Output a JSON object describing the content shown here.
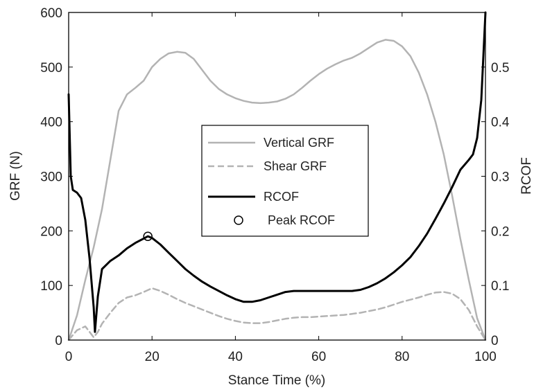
{
  "chart_data": {
    "type": "line",
    "xlabel": "Stance Time (%)",
    "ylabel": "GRF (N)",
    "ylabel_right": "RCOF",
    "xlim": [
      0,
      100
    ],
    "ylim": [
      0,
      600
    ],
    "ylim_right": [
      0,
      0.6
    ],
    "x_ticks": [
      "0",
      "20",
      "40",
      "60",
      "80",
      "100"
    ],
    "y_ticks": [
      "0",
      "100",
      "200",
      "300",
      "400",
      "500",
      "600"
    ],
    "y_ticks_right": [
      "0",
      "0.1",
      "0.2",
      "0.3",
      "0.4",
      "0.5"
    ],
    "grid": false,
    "legend_position": "center",
    "series": [
      {
        "name": "Vertical GRF",
        "axis": "left",
        "style": "solid",
        "color": "#b3b3b3",
        "points": [
          [
            0,
            0
          ],
          [
            2,
            45
          ],
          [
            4,
            110
          ],
          [
            6,
            170
          ],
          [
            8,
            240
          ],
          [
            10,
            330
          ],
          [
            12,
            420
          ],
          [
            14,
            450
          ],
          [
            16,
            462
          ],
          [
            18,
            475
          ],
          [
            20,
            500
          ],
          [
            22,
            515
          ],
          [
            24,
            525
          ],
          [
            26,
            528
          ],
          [
            28,
            526
          ],
          [
            30,
            515
          ],
          [
            32,
            495
          ],
          [
            34,
            475
          ],
          [
            36,
            460
          ],
          [
            38,
            450
          ],
          [
            40,
            443
          ],
          [
            42,
            438
          ],
          [
            44,
            435
          ],
          [
            46,
            434
          ],
          [
            48,
            435
          ],
          [
            50,
            437
          ],
          [
            52,
            442
          ],
          [
            54,
            450
          ],
          [
            56,
            462
          ],
          [
            58,
            475
          ],
          [
            60,
            487
          ],
          [
            62,
            497
          ],
          [
            64,
            505
          ],
          [
            66,
            512
          ],
          [
            68,
            517
          ],
          [
            70,
            525
          ],
          [
            72,
            535
          ],
          [
            74,
            545
          ],
          [
            76,
            550
          ],
          [
            78,
            548
          ],
          [
            80,
            538
          ],
          [
            82,
            520
          ],
          [
            84,
            490
          ],
          [
            86,
            450
          ],
          [
            88,
            400
          ],
          [
            90,
            340
          ],
          [
            92,
            265
          ],
          [
            94,
            185
          ],
          [
            96,
            110
          ],
          [
            98,
            40
          ],
          [
            100,
            0
          ]
        ]
      },
      {
        "name": "Shear GRF",
        "axis": "left",
        "style": "dashed",
        "color": "#b3b3b3",
        "points": [
          [
            0,
            0
          ],
          [
            2,
            18
          ],
          [
            4,
            25
          ],
          [
            5,
            15
          ],
          [
            6,
            5
          ],
          [
            7,
            15
          ],
          [
            8,
            30
          ],
          [
            10,
            50
          ],
          [
            12,
            68
          ],
          [
            14,
            78
          ],
          [
            16,
            82
          ],
          [
            18,
            88
          ],
          [
            20,
            95
          ],
          [
            22,
            90
          ],
          [
            24,
            83
          ],
          [
            26,
            75
          ],
          [
            28,
            68
          ],
          [
            30,
            62
          ],
          [
            32,
            56
          ],
          [
            34,
            50
          ],
          [
            36,
            44
          ],
          [
            38,
            39
          ],
          [
            40,
            35
          ],
          [
            42,
            32
          ],
          [
            44,
            31
          ],
          [
            46,
            31
          ],
          [
            48,
            33
          ],
          [
            50,
            36
          ],
          [
            52,
            39
          ],
          [
            54,
            41
          ],
          [
            56,
            42
          ],
          [
            58,
            42
          ],
          [
            60,
            43
          ],
          [
            62,
            44
          ],
          [
            64,
            45
          ],
          [
            66,
            46
          ],
          [
            68,
            48
          ],
          [
            70,
            50
          ],
          [
            72,
            53
          ],
          [
            74,
            56
          ],
          [
            76,
            60
          ],
          [
            78,
            65
          ],
          [
            80,
            70
          ],
          [
            82,
            74
          ],
          [
            84,
            78
          ],
          [
            86,
            83
          ],
          [
            88,
            87
          ],
          [
            90,
            88
          ],
          [
            92,
            85
          ],
          [
            94,
            75
          ],
          [
            96,
            55
          ],
          [
            98,
            25
          ],
          [
            100,
            0
          ]
        ]
      },
      {
        "name": "RCOF",
        "axis": "right",
        "style": "solid",
        "color": "#000000",
        "points": [
          [
            0,
            0.45
          ],
          [
            0.5,
            0.3
          ],
          [
            1,
            0.275
          ],
          [
            2,
            0.27
          ],
          [
            3,
            0.26
          ],
          [
            4,
            0.22
          ],
          [
            5,
            0.15
          ],
          [
            6,
            0.06
          ],
          [
            6.3,
            0.015
          ],
          [
            7,
            0.08
          ],
          [
            8,
            0.13
          ],
          [
            10,
            0.145
          ],
          [
            12,
            0.155
          ],
          [
            14,
            0.168
          ],
          [
            16,
            0.178
          ],
          [
            18,
            0.186
          ],
          [
            19,
            0.19
          ],
          [
            20,
            0.187
          ],
          [
            22,
            0.175
          ],
          [
            24,
            0.16
          ],
          [
            26,
            0.145
          ],
          [
            28,
            0.13
          ],
          [
            30,
            0.118
          ],
          [
            32,
            0.107
          ],
          [
            34,
            0.098
          ],
          [
            36,
            0.09
          ],
          [
            38,
            0.082
          ],
          [
            40,
            0.075
          ],
          [
            42,
            0.07
          ],
          [
            44,
            0.07
          ],
          [
            46,
            0.073
          ],
          [
            48,
            0.078
          ],
          [
            50,
            0.083
          ],
          [
            52,
            0.088
          ],
          [
            54,
            0.09
          ],
          [
            56,
            0.09
          ],
          [
            58,
            0.09
          ],
          [
            60,
            0.09
          ],
          [
            62,
            0.09
          ],
          [
            64,
            0.09
          ],
          [
            66,
            0.09
          ],
          [
            68,
            0.09
          ],
          [
            70,
            0.092
          ],
          [
            72,
            0.097
          ],
          [
            74,
            0.104
          ],
          [
            76,
            0.113
          ],
          [
            78,
            0.124
          ],
          [
            80,
            0.137
          ],
          [
            82,
            0.152
          ],
          [
            84,
            0.172
          ],
          [
            86,
            0.195
          ],
          [
            88,
            0.222
          ],
          [
            90,
            0.25
          ],
          [
            92,
            0.28
          ],
          [
            94,
            0.312
          ],
          [
            96,
            0.33
          ],
          [
            97,
            0.34
          ],
          [
            98,
            0.37
          ],
          [
            99,
            0.44
          ],
          [
            99.5,
            0.52
          ],
          [
            100,
            0.6
          ]
        ]
      },
      {
        "name": "Peak RCOF",
        "axis": "right",
        "style": "marker-circle",
        "color": "#000000",
        "points": [
          [
            19,
            0.19
          ]
        ]
      }
    ]
  }
}
